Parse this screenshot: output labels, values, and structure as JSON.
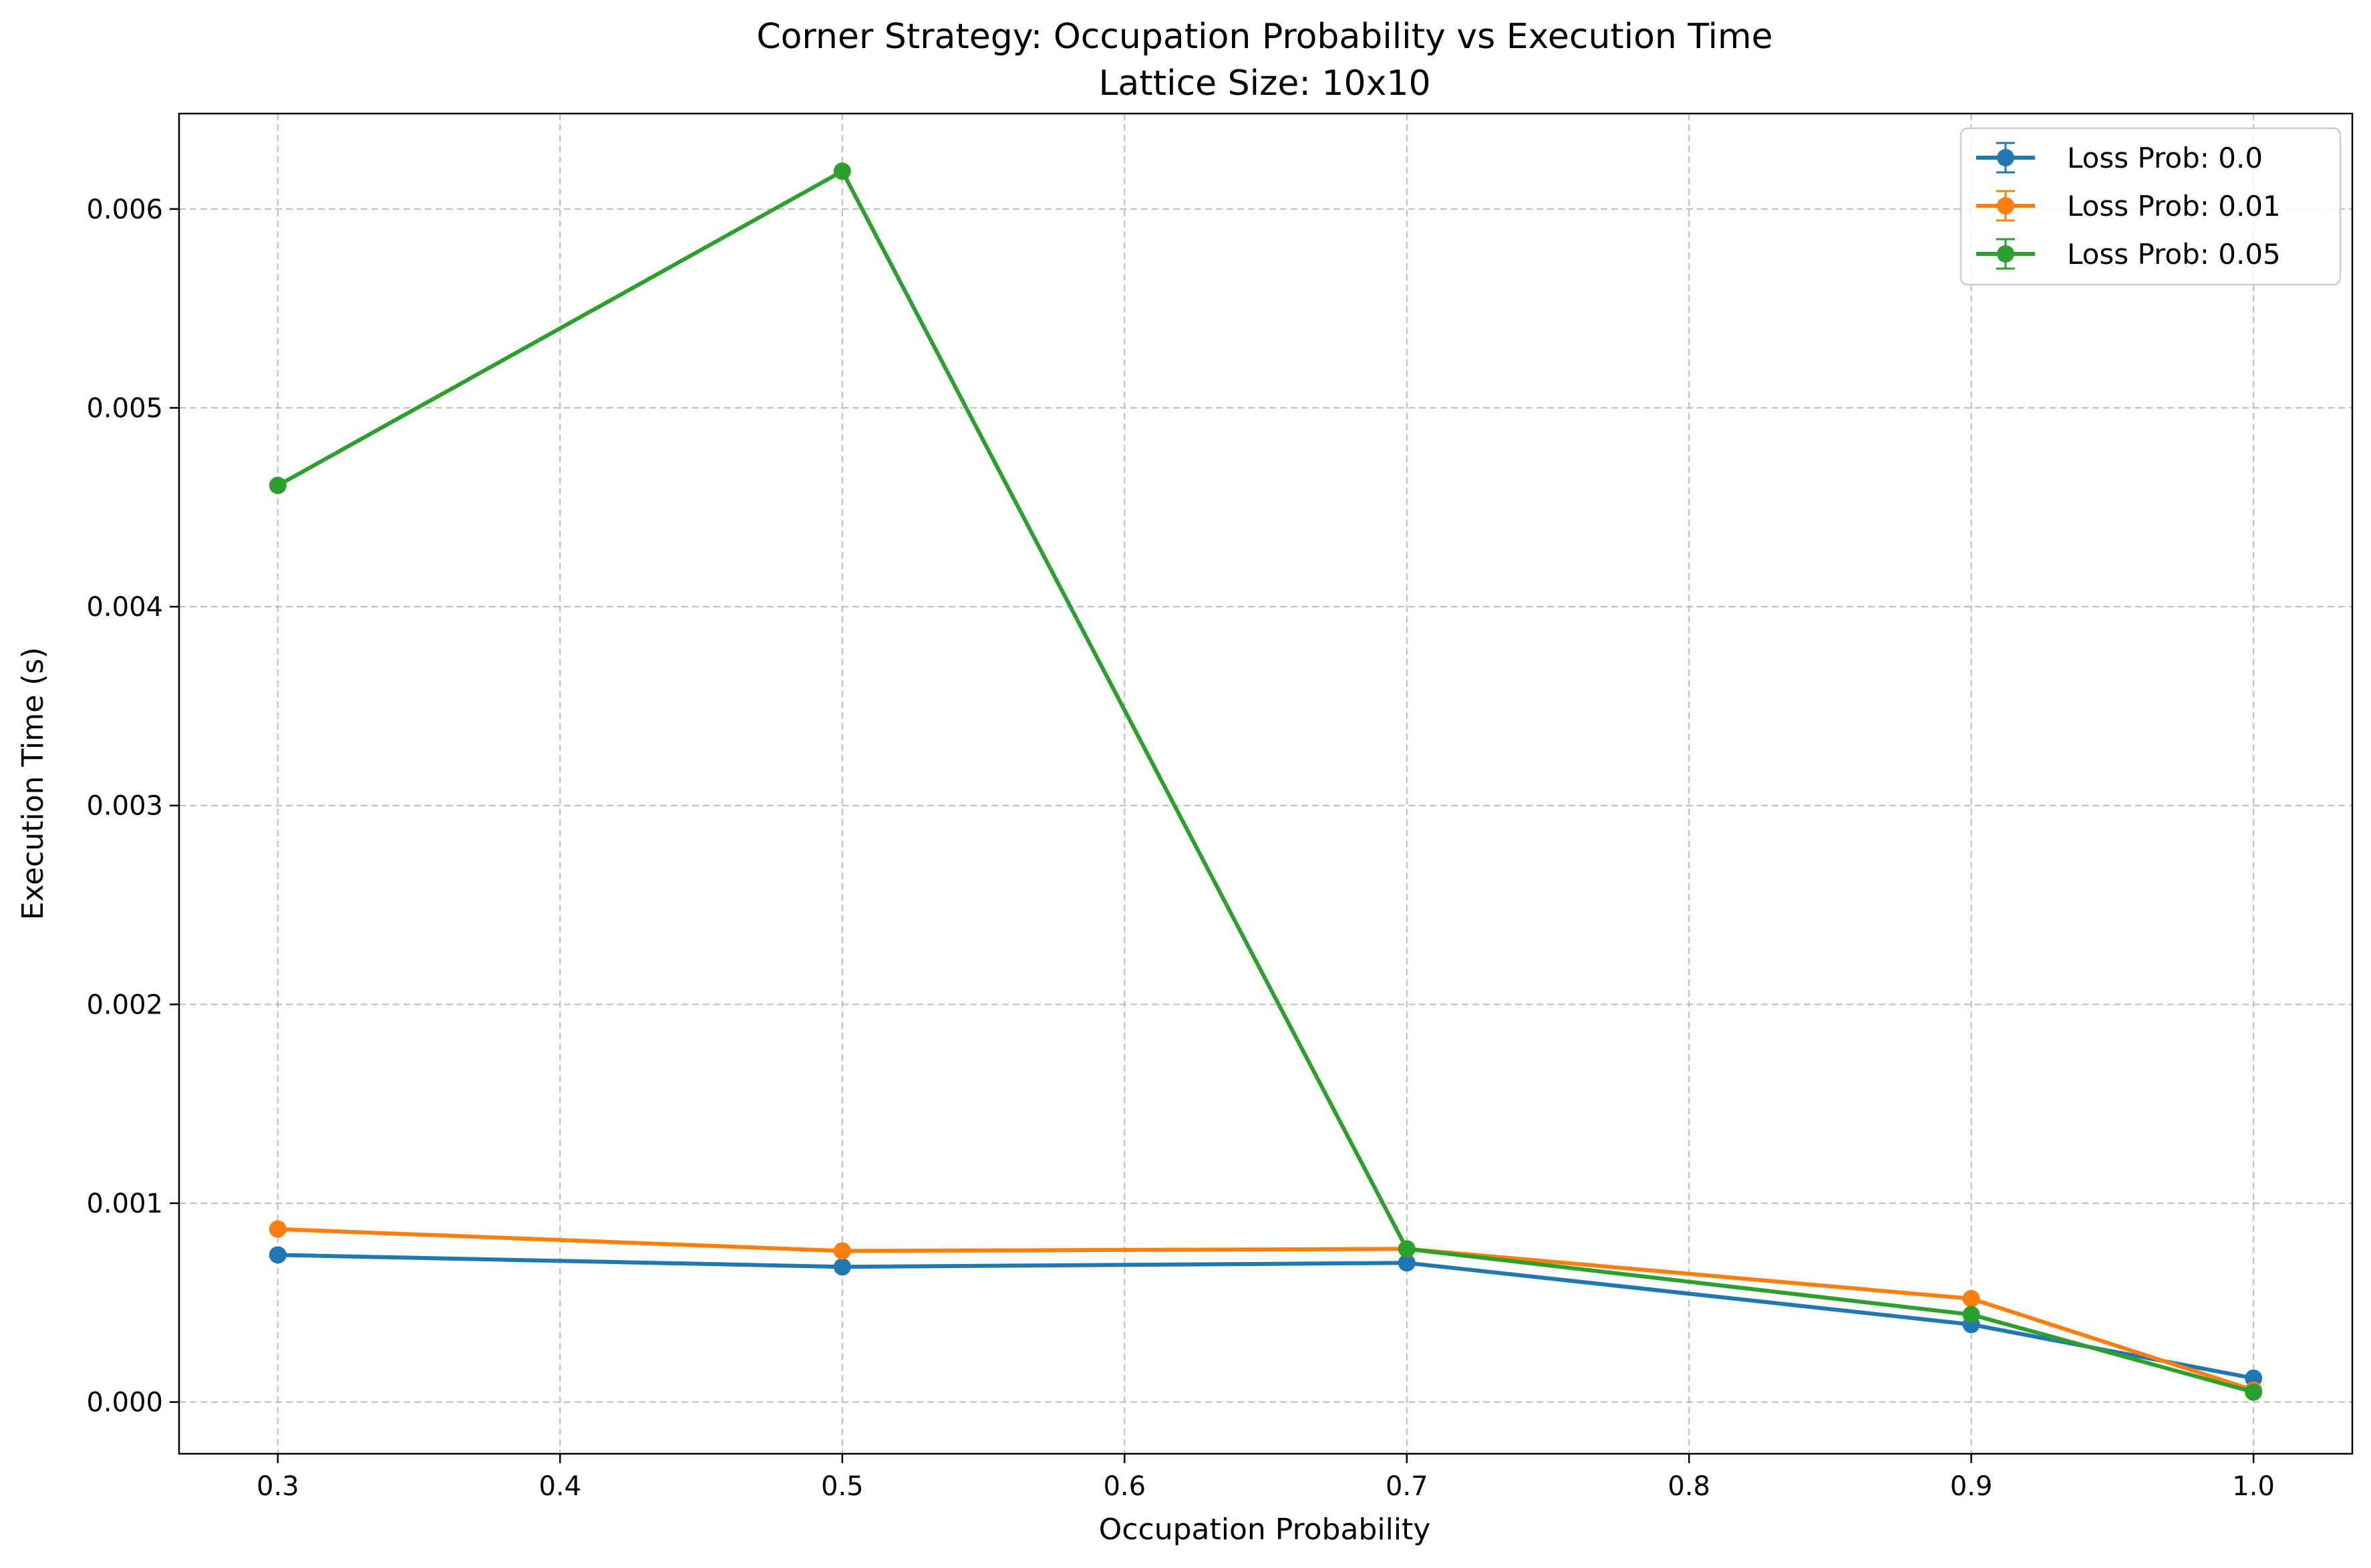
{
  "chart_data": {
    "type": "line",
    "title": "Corner Strategy: Occupation Probability vs Execution Time",
    "subtitle": "Lattice Size: 10x10",
    "xlabel": "Occupation Probability",
    "ylabel": "Execution Time (s)",
    "xlim": [
      0.265,
      1.035
    ],
    "ylim": [
      -0.00026,
      0.00648
    ],
    "x_ticks": [
      0.3,
      0.4,
      0.5,
      0.6,
      0.7,
      0.8,
      0.9,
      1.0
    ],
    "x_tick_labels": [
      "0.3",
      "0.4",
      "0.5",
      "0.6",
      "0.7",
      "0.8",
      "0.9",
      "1.0"
    ],
    "y_ticks": [
      0.0,
      0.001,
      0.002,
      0.003,
      0.004,
      0.005,
      0.006
    ],
    "y_tick_labels": [
      "0.000",
      "0.001",
      "0.002",
      "0.003",
      "0.004",
      "0.005",
      "0.006"
    ],
    "grid": true,
    "legend_position": "top-right",
    "x": [
      0.3,
      0.5,
      0.7,
      0.9,
      1.0
    ],
    "series": [
      {
        "name": "Loss Prob: 0.0",
        "color": "#1f77b4",
        "values": [
          0.00074,
          0.00068,
          0.0007,
          0.00039,
          0.00012
        ]
      },
      {
        "name": "Loss Prob: 0.01",
        "color": "#ff7f0e",
        "values": [
          0.00087,
          0.00076,
          0.00077,
          0.00052,
          6e-05
        ]
      },
      {
        "name": "Loss Prob: 0.05",
        "color": "#2ca02c",
        "values": [
          0.00461,
          0.00619,
          0.00077,
          0.00044,
          5e-05
        ]
      }
    ]
  }
}
